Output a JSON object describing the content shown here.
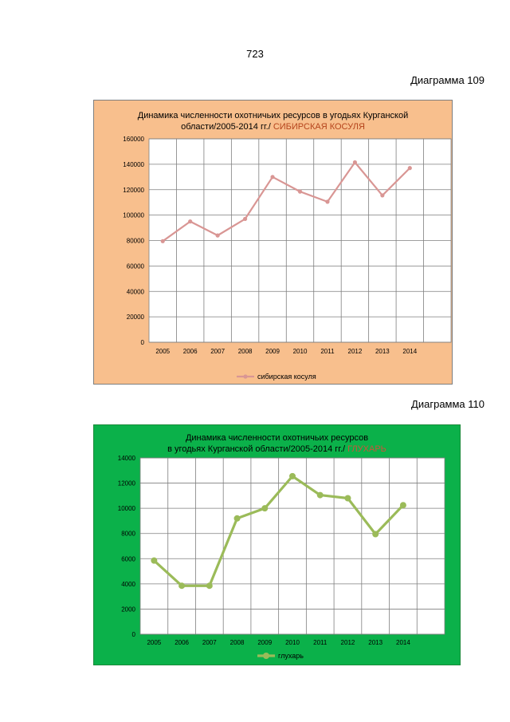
{
  "page_number": "723",
  "charts": [
    {
      "label": "Диаграмма 109",
      "title_line1": "Динамика численности охотничьих ресурсов  в угодьях  Курганской",
      "title_line2": "области/2005-2014 гг./ ",
      "title_accent": "СИБИРСКАЯ КОСУЛЯ",
      "colors": {
        "background": "#f8bf8d",
        "line": "#d99694",
        "grid": "#7f7f7f",
        "plot_bg": "#ffffff",
        "accent": "#b5441c"
      }
    },
    {
      "label": "Диаграмма 110",
      "title_line1": "Динамика численности охотничьих ресурсов",
      "title_line2": "в  угодьях  Курганской области/2005-2014 гг./ ",
      "title_accent": "ГЛУХАРЬ",
      "colors": {
        "background": "#0bb14a",
        "line": "#9bbb59",
        "grid": "#7f7f7f",
        "plot_bg": "#ffffff",
        "accent": "#c8553b"
      }
    }
  ],
  "chart_data": [
    {
      "type": "line",
      "title": "Динамика численности охотничьих ресурсов  в угодьях  Курганской области/2005-2014 гг./ СИБИРСКАЯ КОСУЛЯ",
      "categories": [
        "2005",
        "2006",
        "2007",
        "2008",
        "2009",
        "2010",
        "2011",
        "2012",
        "2013",
        "2014"
      ],
      "series": [
        {
          "name": "сибирская косуля",
          "values": [
            79500,
            95000,
            84000,
            97000,
            130000,
            118500,
            110500,
            141500,
            115500,
            137000
          ]
        }
      ],
      "ylim": [
        0,
        160000
      ],
      "yticks": [
        "0",
        "20000",
        "40000",
        "60000",
        "80000",
        "100000",
        "120000",
        "140000",
        "160000"
      ],
      "legend": "bottom",
      "grid": true
    },
    {
      "type": "line",
      "title": "Динамика численности охотничьих ресурсов в  угодьях  Курганской области/2005-2014 гг./ ГЛУХАРЬ",
      "categories": [
        "2005",
        "2006",
        "2007",
        "2008",
        "2009",
        "2010",
        "2011",
        "2012",
        "2013",
        "2014"
      ],
      "series": [
        {
          "name": "глухарь",
          "values": [
            5850,
            3850,
            3850,
            9200,
            10000,
            12550,
            11050,
            10800,
            7950,
            10250
          ]
        }
      ],
      "ylim": [
        0,
        14000
      ],
      "yticks": [
        "0",
        "2000",
        "4000",
        "6000",
        "8000",
        "10000",
        "12000",
        "14000"
      ],
      "legend": "bottom",
      "grid": true
    }
  ]
}
